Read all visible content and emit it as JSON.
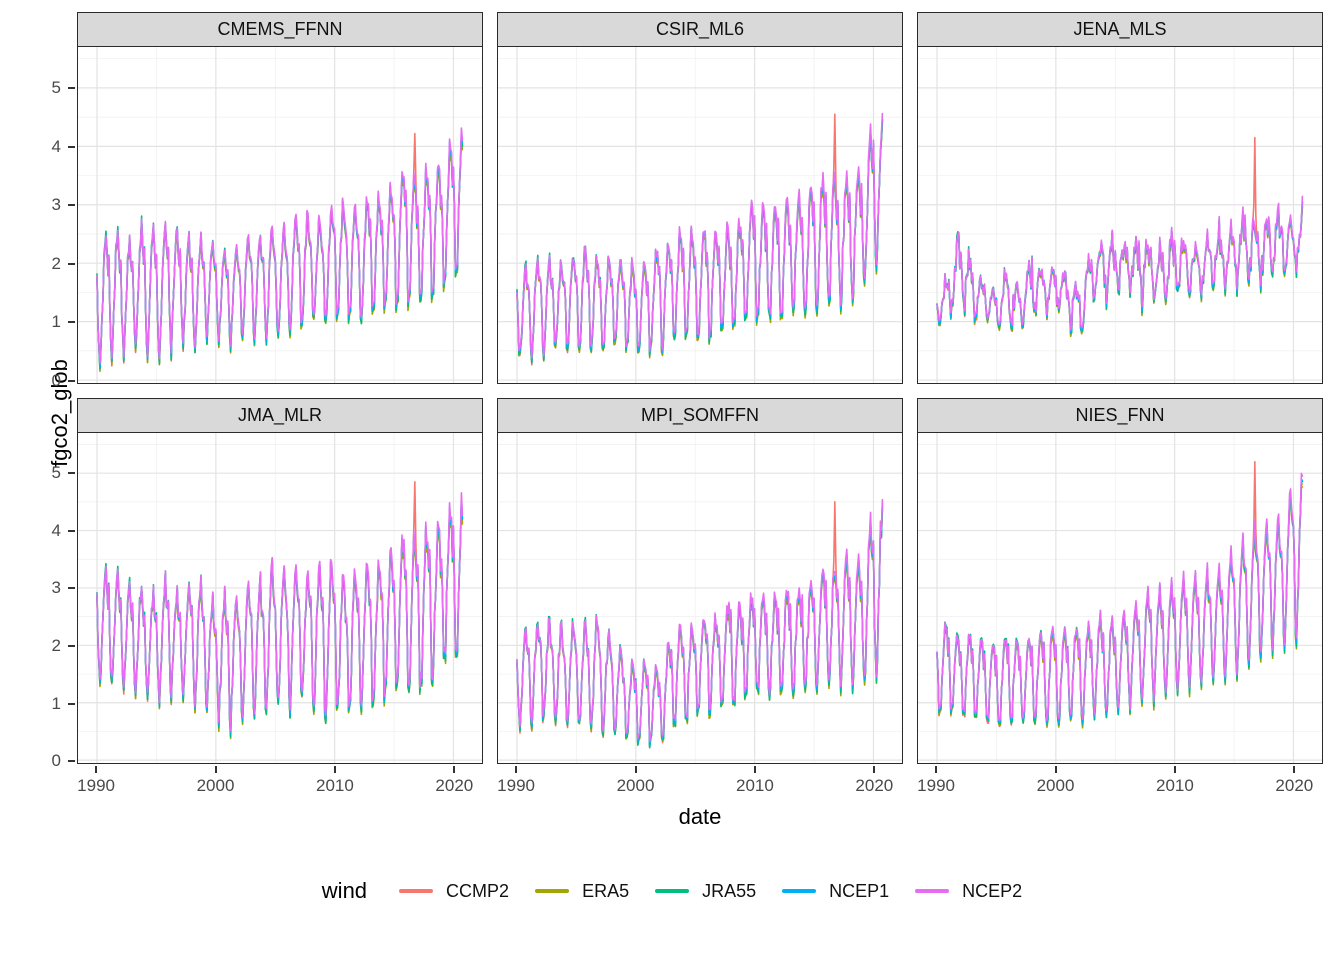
{
  "axes": {
    "x_label": "date",
    "y_label": "fgco2_glob",
    "x_ticks": [
      1990,
      2000,
      2010,
      2020
    ],
    "x_minor": [
      1995,
      2005,
      2015
    ],
    "y_ticks": [
      0,
      1,
      2,
      3,
      4,
      5
    ],
    "y_minor": [
      0.5,
      1.5,
      2.5,
      3.5,
      4.5,
      5.5
    ],
    "x_domain": [
      1988.4,
      2022.4
    ],
    "y_domain": [
      -0.05,
      5.7
    ]
  },
  "legend": {
    "title": "wind"
  },
  "style": {
    "strip_fill": "#d9d9d9",
    "panel_border": "#2b2b2b",
    "grid_major": "#e3e3e3",
    "grid_minor": "#efefef",
    "tick_label_color": "#4a4a4a"
  },
  "chart_data": {
    "type": "line",
    "x_unit": "monthly, Jan 1990 - Oct 2020",
    "series": [
      {
        "name": "CCMP2",
        "color": "#F8766D",
        "offsets": [
          -0.02,
          -0.05,
          -0.1,
          -0.03
        ]
      },
      {
        "name": "ERA5",
        "color": "#A3A500",
        "offsets": [
          -0.05,
          -0.08,
          -0.07,
          -0.12
        ]
      },
      {
        "name": "JRA55",
        "color": "#00BF7D",
        "offsets": [
          0.07,
          -0.02,
          -0.05,
          -0.08
        ]
      },
      {
        "name": "NCEP1",
        "color": "#00B0F6",
        "offsets": [
          0.0,
          0.02,
          -0.02,
          -0.02
        ]
      },
      {
        "name": "NCEP2",
        "color": "#E76BF3",
        "offsets": [
          0.02,
          0.1,
          0.03,
          0.04
        ]
      }
    ],
    "seasonal_shape": [
      0.8,
      0.45,
      0.1,
      0.03,
      0.15,
      0.4,
      0.62,
      0.82,
      0.97,
      1.0,
      0.88,
      0.72
    ],
    "envelope_years": [
      1990,
      1991,
      1992,
      1993,
      1994,
      1995,
      1996,
      1997,
      1998,
      1999,
      2000,
      2001,
      2002,
      2003,
      2004,
      2005,
      2006,
      2007,
      2008,
      2009,
      2010,
      2011,
      2012,
      2013,
      2014,
      2015,
      2016,
      2017,
      2018,
      2019,
      2020
    ],
    "facets": [
      {
        "name": "CMEMS_FFNN",
        "seed": 1,
        "noise": 0.1,
        "flatten": 0,
        "peaks": [
          2.1,
          2.55,
          2.35,
          2.35,
          2.65,
          2.5,
          2.6,
          2.55,
          2.35,
          2.4,
          2.3,
          2.15,
          2.3,
          2.4,
          2.45,
          2.55,
          2.6,
          2.8,
          2.75,
          2.65,
          3.0,
          2.95,
          2.95,
          3.1,
          3.1,
          3.35,
          3.6,
          3.3,
          3.6,
          3.65,
          4.15
        ],
        "troughs": [
          0.25,
          0.3,
          0.4,
          0.55,
          0.45,
          0.35,
          0.5,
          0.6,
          0.55,
          0.65,
          0.7,
          0.6,
          0.75,
          0.75,
          0.7,
          0.8,
          0.75,
          0.85,
          1.0,
          0.95,
          1.0,
          1.05,
          0.9,
          1.1,
          1.15,
          1.2,
          1.3,
          1.25,
          1.35,
          1.5,
          1.8
        ],
        "spike": {
          "series": "CCMP2",
          "month_index": 321,
          "year": 2016.75,
          "value": 4.22
        }
      },
      {
        "name": "CSIR_ML6",
        "seed": 2,
        "noise": 0.12,
        "flatten": 0,
        "peaks": [
          1.75,
          1.9,
          2.05,
          2.0,
          2.0,
          2.1,
          2.2,
          2.0,
          2.1,
          2.0,
          1.9,
          2.0,
          2.3,
          2.4,
          2.5,
          2.5,
          2.6,
          2.5,
          2.6,
          2.7,
          3.1,
          2.9,
          2.9,
          3.0,
          3.1,
          3.3,
          3.5,
          3.4,
          3.55,
          3.6,
          4.35
        ],
        "troughs": [
          0.45,
          0.4,
          0.45,
          0.5,
          0.55,
          0.5,
          0.55,
          0.45,
          0.6,
          0.55,
          0.5,
          0.45,
          0.4,
          0.7,
          0.65,
          0.7,
          0.65,
          0.75,
          0.8,
          0.9,
          0.95,
          1.0,
          0.95,
          1.05,
          1.1,
          1.15,
          1.2,
          1.3,
          1.3,
          1.5,
          1.9
        ],
        "spike": {
          "series": "CCMP2",
          "month_index": 321,
          "year": 2016.75,
          "value": 4.55
        }
      },
      {
        "name": "JENA_MLS",
        "seed": 3,
        "noise": 0.3,
        "flatten": 0.3,
        "peaks": [
          1.5,
          1.9,
          2.75,
          2.1,
          1.7,
          1.65,
          2.0,
          1.65,
          2.25,
          2.0,
          2.1,
          1.85,
          1.65,
          2.55,
          2.5,
          2.65,
          2.4,
          2.55,
          2.45,
          2.3,
          2.6,
          2.55,
          2.4,
          2.8,
          2.65,
          2.75,
          3.1,
          2.85,
          3.0,
          3.05,
          3.05
        ],
        "troughs": [
          0.85,
          1.0,
          1.1,
          0.95,
          1.0,
          0.75,
          0.85,
          0.8,
          1.0,
          1.05,
          1.0,
          0.9,
          0.55,
          1.15,
          1.3,
          1.2,
          1.3,
          1.2,
          1.25,
          1.2,
          1.3,
          1.35,
          1.3,
          1.4,
          1.4,
          1.5,
          1.5,
          1.55,
          1.5,
          1.55,
          1.7
        ],
        "spike": {
          "series": "CCMP2",
          "month_index": 321,
          "year": 2016.75,
          "value": 4.15
        }
      },
      {
        "name": "JMA_MLR",
        "seed": 4,
        "noise": 0.12,
        "flatten": 0,
        "peaks": [
          3.05,
          3.3,
          3.1,
          2.9,
          2.95,
          2.85,
          3.2,
          2.75,
          3.1,
          2.95,
          2.7,
          2.85,
          2.85,
          3.0,
          3.1,
          3.35,
          3.2,
          3.25,
          3.25,
          3.3,
          3.35,
          3.15,
          3.3,
          3.3,
          3.4,
          3.75,
          3.9,
          3.85,
          4.05,
          3.95,
          4.45
        ],
        "troughs": [
          1.45,
          1.35,
          1.3,
          1.15,
          1.1,
          1.05,
          1.1,
          1.15,
          1.0,
          0.85,
          0.8,
          0.6,
          0.55,
          0.9,
          0.75,
          0.9,
          0.85,
          1.0,
          0.95,
          0.7,
          0.75,
          0.7,
          0.85,
          1.0,
          1.05,
          1.05,
          1.2,
          1.15,
          1.2,
          1.65,
          1.75
        ],
        "spike": {
          "series": "CCMP2",
          "month_index": 321,
          "year": 2016.75,
          "value": 4.85
        }
      },
      {
        "name": "MPI_SOMFFN",
        "seed": 5,
        "noise": 0.13,
        "flatten": 0,
        "peaks": [
          2.0,
          2.3,
          2.4,
          2.3,
          2.3,
          2.4,
          2.3,
          2.4,
          2.1,
          1.8,
          1.6,
          1.8,
          1.5,
          2.2,
          2.3,
          2.3,
          2.6,
          2.4,
          2.8,
          2.6,
          2.9,
          2.8,
          2.85,
          2.9,
          2.95,
          3.1,
          3.3,
          3.3,
          3.5,
          3.3,
          4.3
        ],
        "troughs": [
          0.6,
          0.65,
          0.7,
          0.75,
          0.55,
          0.5,
          0.55,
          0.4,
          0.45,
          0.4,
          0.3,
          0.25,
          0.3,
          0.55,
          0.6,
          0.75,
          0.8,
          0.9,
          0.8,
          1.1,
          1.2,
          1.1,
          1.1,
          1.2,
          1.2,
          1.3,
          1.3,
          1.35,
          1.3,
          1.4,
          1.45
        ],
        "spike": {
          "series": "CCMP2",
          "month_index": 321,
          "year": 2016.75,
          "value": 4.5
        }
      },
      {
        "name": "NIES_FNN",
        "seed": 6,
        "noise": 0.08,
        "flatten": 0,
        "peaks": [
          2.15,
          2.35,
          2.1,
          2.2,
          2.05,
          2.0,
          2.2,
          2.0,
          2.15,
          2.2,
          2.3,
          2.2,
          2.3,
          2.3,
          2.5,
          2.4,
          2.6,
          2.7,
          2.9,
          2.9,
          3.05,
          3.1,
          3.15,
          3.2,
          3.3,
          3.6,
          3.8,
          4.0,
          4.1,
          4.15,
          4.85
        ],
        "troughs": [
          0.85,
          0.8,
          0.75,
          0.7,
          0.65,
          0.55,
          0.6,
          0.65,
          0.6,
          0.65,
          0.55,
          0.7,
          0.65,
          0.8,
          0.75,
          0.8,
          0.9,
          1.0,
          1.05,
          1.1,
          1.2,
          1.3,
          1.25,
          1.4,
          1.45,
          1.5,
          1.6,
          1.8,
          1.9,
          2.0,
          2.1
        ],
        "spike": {
          "series": "CCMP2",
          "month_index": 321,
          "year": 2016.75,
          "value": 5.2
        }
      }
    ]
  }
}
